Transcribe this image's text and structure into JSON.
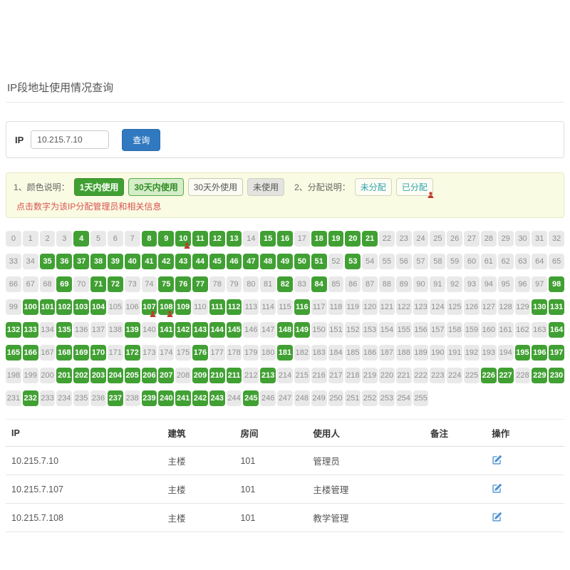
{
  "page": {
    "title": "IP段地址使用情况查询"
  },
  "search": {
    "ip_label": "IP",
    "ip_value": "10.215.7.10",
    "query_button": "查询"
  },
  "legend": {
    "color_label": "1、颜色说明：",
    "used_1day": "1天内使用",
    "used_30days": "30天内使用",
    "used_over_30days": "30天外使用",
    "unused": "未使用",
    "assign_label": "2、分配说明：",
    "unassigned": "未分配",
    "assigned": "已分配",
    "note": "点击数字为该IP分配管理员和相关信息"
  },
  "colors": {
    "used_1day_green": "#41a033",
    "unused_gray": "#e9e9e9",
    "primary_blue": "#3079c0",
    "assigned_person_red": "#c0392b",
    "note_red": "#d9534f",
    "edit_icon_blue": "#4a90d2"
  },
  "ip_grid": {
    "start": 0,
    "end": 255,
    "columns": 33,
    "used_1day": [
      4,
      8,
      9,
      10,
      11,
      12,
      13,
      15,
      16,
      18,
      19,
      20,
      21,
      35,
      36,
      37,
      38,
      39,
      40,
      41,
      42,
      43,
      44,
      45,
      46,
      47,
      48,
      49,
      50,
      51,
      53,
      69,
      71,
      72,
      75,
      76,
      77,
      82,
      84,
      98,
      100,
      101,
      102,
      103,
      104,
      107,
      108,
      109,
      111,
      112,
      116,
      130,
      131,
      132,
      133,
      135,
      139,
      141,
      142,
      143,
      144,
      145,
      148,
      149,
      164,
      165,
      166,
      168,
      169,
      170,
      172,
      176,
      181,
      195,
      196,
      197,
      201,
      202,
      203,
      204,
      205,
      206,
      207,
      209,
      210,
      211,
      213,
      226,
      227,
      229,
      230,
      232,
      237,
      239,
      240,
      241,
      242,
      243,
      245
    ],
    "assigned": [
      10,
      107,
      108
    ]
  },
  "table": {
    "headers": [
      "IP",
      "建筑",
      "房间",
      "使用人",
      "备注",
      "操作"
    ],
    "rows": [
      {
        "ip": "10.215.7.10",
        "building": "主楼",
        "room": "101",
        "user": "管理员",
        "note": ""
      },
      {
        "ip": "10.215.7.107",
        "building": "主楼",
        "room": "101",
        "user": "主楼管理",
        "note": ""
      },
      {
        "ip": "10.215.7.108",
        "building": "主楼",
        "room": "101",
        "user": "教学管理",
        "note": ""
      }
    ]
  }
}
